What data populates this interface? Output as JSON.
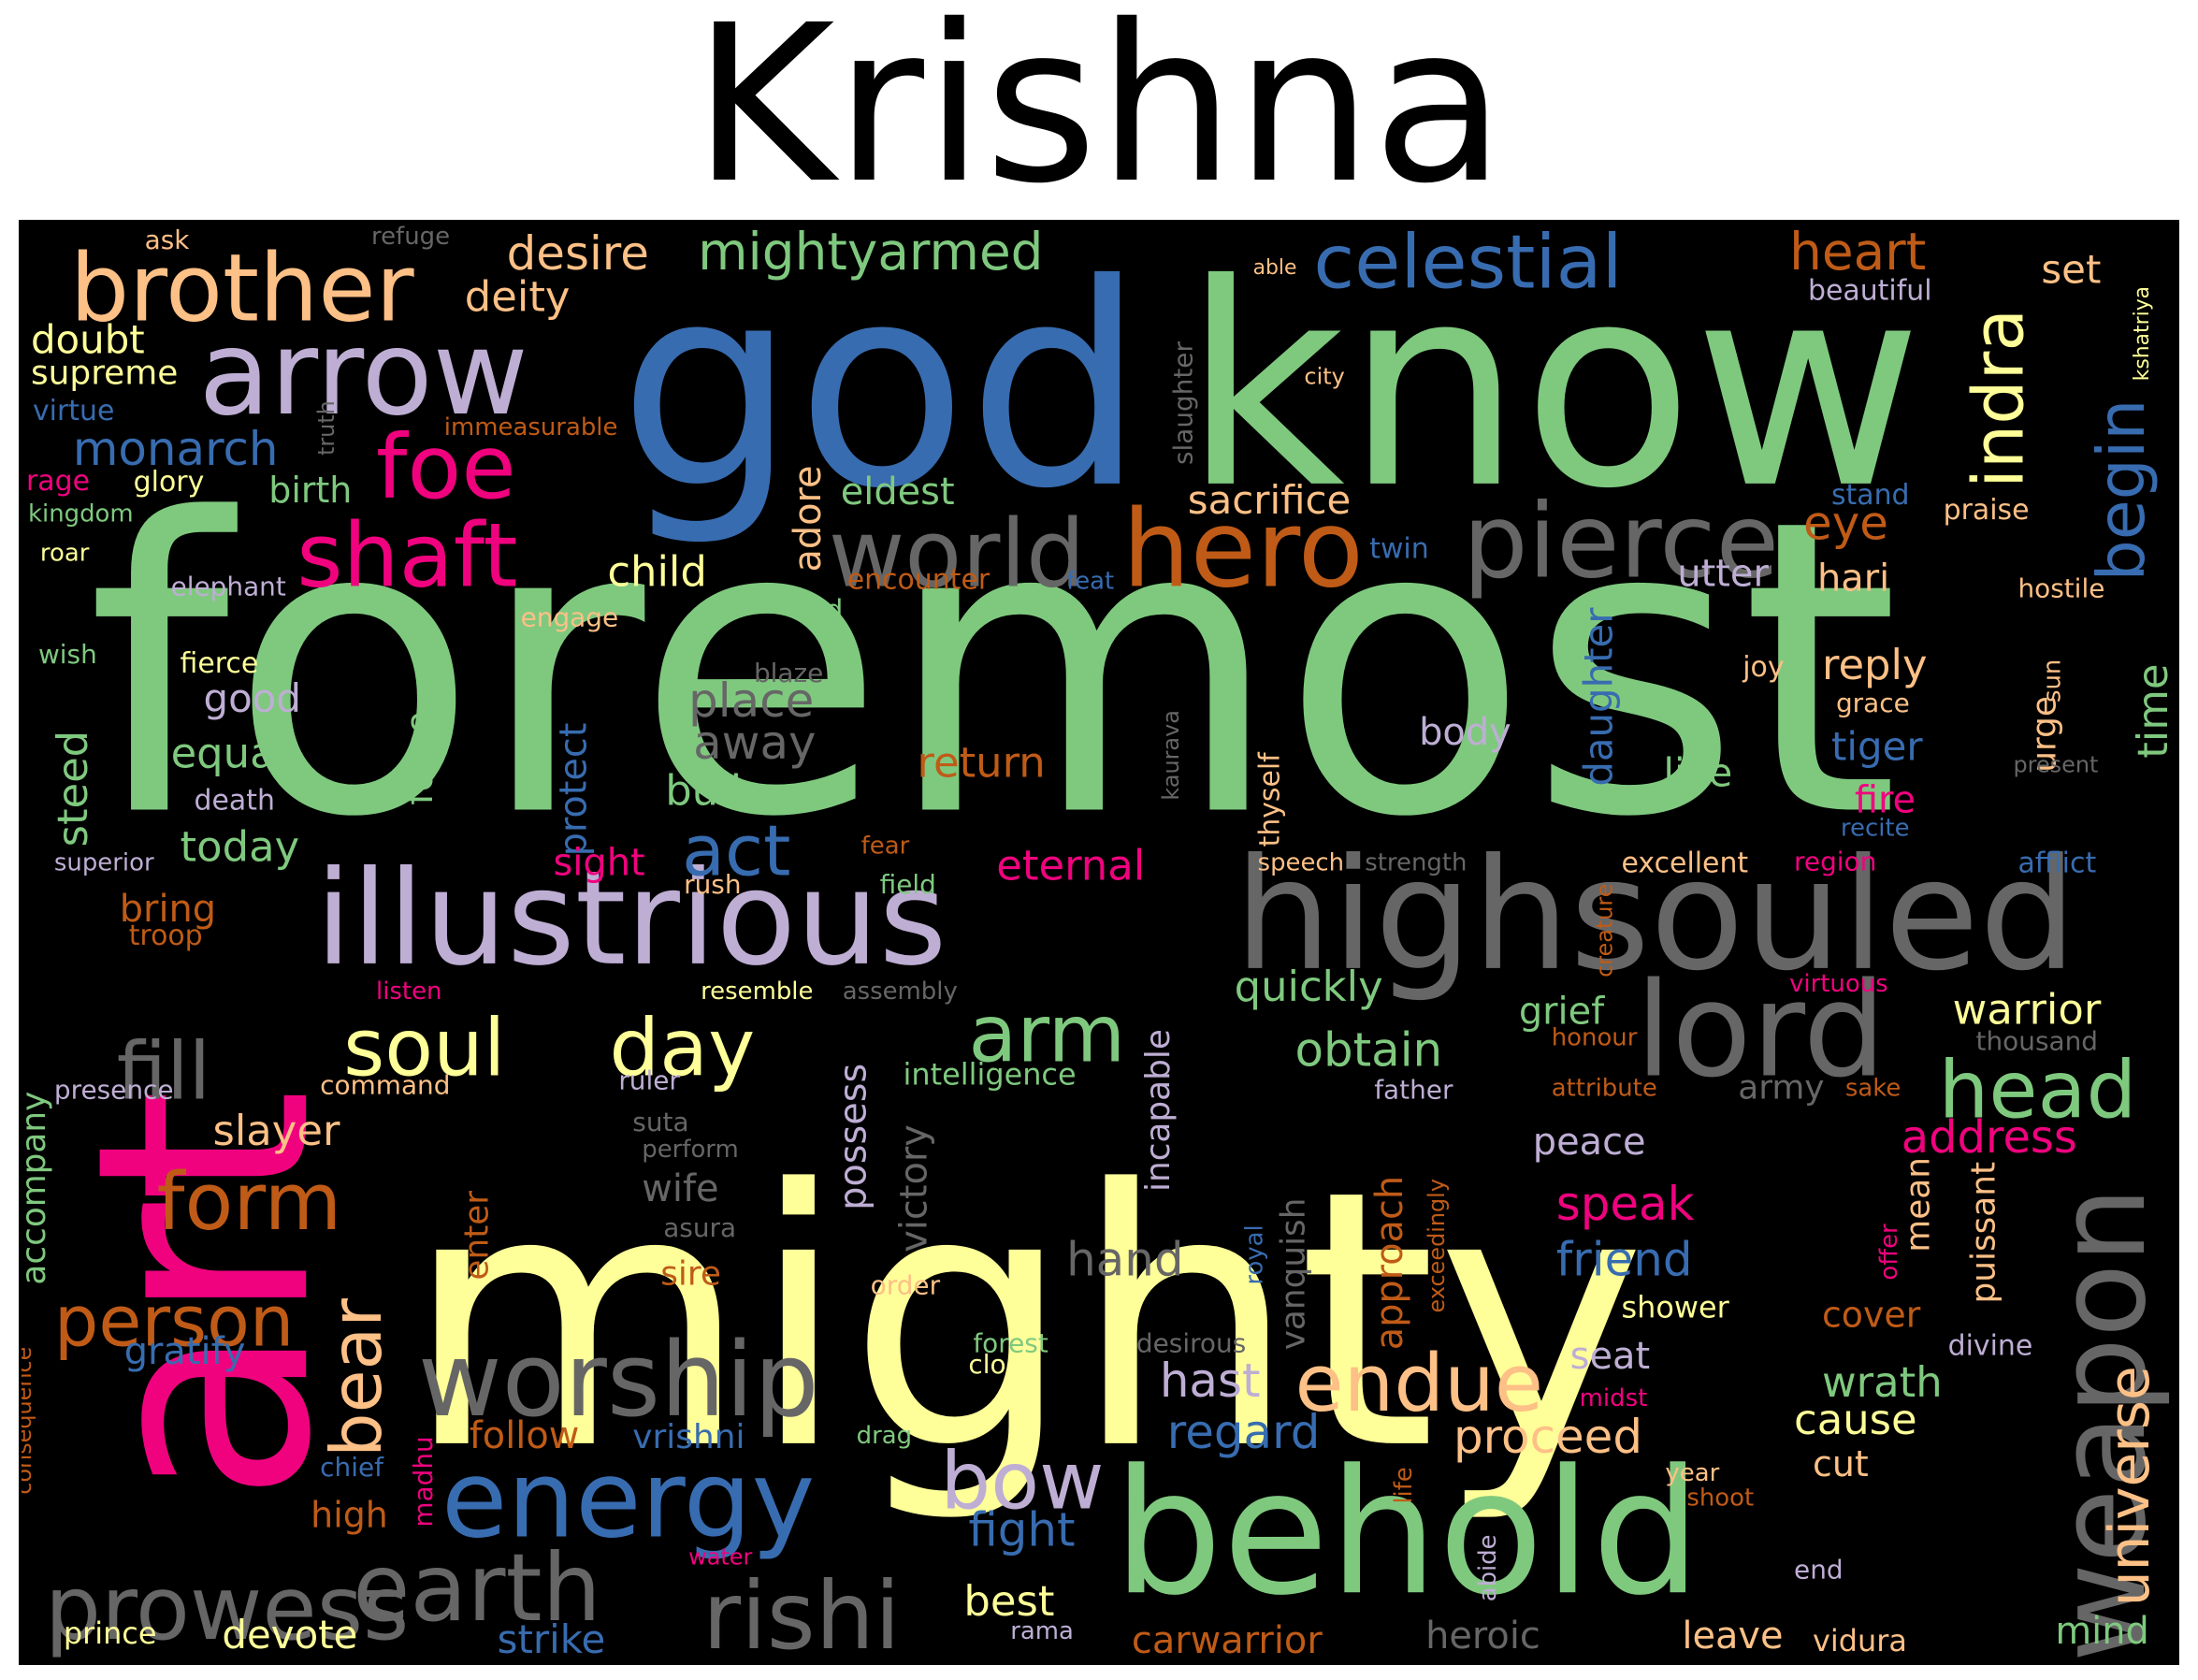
{
  "title": "Krishna",
  "colors": {
    "green": "#7fc97f",
    "purple": "#beaed4",
    "orange": "#fdc086",
    "yellow": "#ffff99",
    "blue": "#386cb0",
    "pink": "#f0027f",
    "brown": "#bf5b17",
    "gray": "#666666"
  },
  "words": [
    {
      "text": "foremost",
      "color": "green"
    },
    {
      "text": "mighty",
      "color": "yellow"
    },
    {
      "text": "art",
      "color": "pink"
    },
    {
      "text": "god",
      "color": "blue"
    },
    {
      "text": "know",
      "color": "green"
    },
    {
      "text": "highsouled",
      "color": "gray"
    },
    {
      "text": "illustrious",
      "color": "purple"
    },
    {
      "text": "behold",
      "color": "green"
    },
    {
      "text": "weapon",
      "color": "gray"
    },
    {
      "text": "lord",
      "color": "gray"
    },
    {
      "text": "arrow",
      "color": "purple"
    },
    {
      "text": "brother",
      "color": "orange"
    },
    {
      "text": "pierce",
      "color": "gray"
    },
    {
      "text": "hero",
      "color": "brown"
    },
    {
      "text": "world",
      "color": "gray"
    },
    {
      "text": "celestial",
      "color": "blue"
    },
    {
      "text": "energy",
      "color": "blue"
    },
    {
      "text": "worship",
      "color": "gray"
    },
    {
      "text": "earth",
      "color": "gray"
    },
    {
      "text": "prowess",
      "color": "gray"
    },
    {
      "text": "rishi",
      "color": "gray"
    },
    {
      "text": "shaft",
      "color": "pink"
    },
    {
      "text": "foe",
      "color": "pink"
    },
    {
      "text": "soul",
      "color": "yellow"
    },
    {
      "text": "day",
      "color": "yellow"
    },
    {
      "text": "arm",
      "color": "green"
    },
    {
      "text": "fill",
      "color": "gray"
    },
    {
      "text": "form",
      "color": "brown"
    },
    {
      "text": "head",
      "color": "green"
    },
    {
      "text": "person",
      "color": "brown"
    },
    {
      "text": "bow",
      "color": "purple"
    },
    {
      "text": "endue",
      "color": "orange"
    },
    {
      "text": "universe",
      "color": "orange"
    },
    {
      "text": "indra",
      "color": "yellow"
    },
    {
      "text": "begin",
      "color": "blue"
    },
    {
      "text": "bear",
      "color": "orange"
    },
    {
      "text": "act",
      "color": "blue"
    },
    {
      "text": "mightyarmed",
      "color": "green"
    },
    {
      "text": "heart",
      "color": "brown"
    },
    {
      "text": "desire",
      "color": "orange"
    },
    {
      "text": "deity",
      "color": "orange"
    },
    {
      "text": "monarch",
      "color": "blue"
    },
    {
      "text": "doubt",
      "color": "yellow"
    },
    {
      "text": "supreme",
      "color": "yellow"
    },
    {
      "text": "virtue",
      "color": "blue"
    },
    {
      "text": "ask",
      "color": "orange"
    },
    {
      "text": "refuge",
      "color": "gray"
    },
    {
      "text": "able",
      "color": "orange"
    },
    {
      "text": "set",
      "color": "orange"
    },
    {
      "text": "beautiful",
      "color": "purple"
    },
    {
      "text": "kshatriya",
      "color": "yellow"
    },
    {
      "text": "city",
      "color": "orange"
    },
    {
      "text": "truth",
      "color": "gray"
    },
    {
      "text": "slaughter",
      "color": "gray"
    },
    {
      "text": "immeasurable",
      "color": "brown"
    },
    {
      "text": "birth",
      "color": "green"
    },
    {
      "text": "rage",
      "color": "pink"
    },
    {
      "text": "glory",
      "color": "yellow"
    },
    {
      "text": "kingdom",
      "color": "green"
    },
    {
      "text": "roar",
      "color": "yellow"
    },
    {
      "text": "eldest",
      "color": "green"
    },
    {
      "text": "sacrifice",
      "color": "orange"
    },
    {
      "text": "adore",
      "color": "orange"
    },
    {
      "text": "stand",
      "color": "blue"
    },
    {
      "text": "praise",
      "color": "orange"
    },
    {
      "text": "eye",
      "color": "brown"
    },
    {
      "text": "elephant",
      "color": "purple"
    },
    {
      "text": "child",
      "color": "yellow"
    },
    {
      "text": "encounter",
      "color": "brown"
    },
    {
      "text": "feat",
      "color": "blue"
    },
    {
      "text": "twin",
      "color": "blue"
    },
    {
      "text": "utter",
      "color": "purple"
    },
    {
      "text": "hari",
      "color": "orange"
    },
    {
      "text": "hostile",
      "color": "orange"
    },
    {
      "text": "engage",
      "color": "orange"
    },
    {
      "text": "old",
      "color": "green"
    },
    {
      "text": "daughter",
      "color": "blue"
    },
    {
      "text": "wish",
      "color": "green"
    },
    {
      "text": "fierce",
      "color": "yellow"
    },
    {
      "text": "blaze",
      "color": "gray"
    },
    {
      "text": "joy",
      "color": "orange"
    },
    {
      "text": "reply",
      "color": "orange"
    },
    {
      "text": "sun",
      "color": "orange"
    },
    {
      "text": "good",
      "color": "purple"
    },
    {
      "text": "place",
      "color": "gray"
    },
    {
      "text": "grace",
      "color": "orange"
    },
    {
      "text": "urge",
      "color": "orange"
    },
    {
      "text": "time",
      "color": "green"
    },
    {
      "text": "body",
      "color": "purple"
    },
    {
      "text": "tiger",
      "color": "blue"
    },
    {
      "text": "away",
      "color": "gray"
    },
    {
      "text": "kaurava",
      "color": "gray"
    },
    {
      "text": "thyself",
      "color": "orange"
    },
    {
      "text": "equal",
      "color": "green"
    },
    {
      "text": "return",
      "color": "brown"
    },
    {
      "text": "steed",
      "color": "green"
    },
    {
      "text": "force",
      "color": "green"
    },
    {
      "text": "protect",
      "color": "blue"
    },
    {
      "text": "live",
      "color": "green"
    },
    {
      "text": "present",
      "color": "gray"
    },
    {
      "text": "bull",
      "color": "green"
    },
    {
      "text": "death",
      "color": "purple"
    },
    {
      "text": "fire",
      "color": "pink"
    },
    {
      "text": "recite",
      "color": "blue"
    },
    {
      "text": "today",
      "color": "green"
    },
    {
      "text": "superior",
      "color": "purple"
    },
    {
      "text": "fear",
      "color": "brown"
    },
    {
      "text": "speech",
      "color": "orange"
    },
    {
      "text": "strength",
      "color": "gray"
    },
    {
      "text": "excellent",
      "color": "orange"
    },
    {
      "text": "region",
      "color": "pink"
    },
    {
      "text": "afflict",
      "color": "blue"
    },
    {
      "text": "sight",
      "color": "pink"
    },
    {
      "text": "eternal",
      "color": "pink"
    },
    {
      "text": "rush",
      "color": "orange"
    },
    {
      "text": "field",
      "color": "green"
    },
    {
      "text": "creature",
      "color": "brown"
    },
    {
      "text": "bring",
      "color": "brown"
    },
    {
      "text": "troop",
      "color": "brown"
    },
    {
      "text": "listen",
      "color": "pink"
    },
    {
      "text": "resemble",
      "color": "yellow"
    },
    {
      "text": "assembly",
      "color": "gray"
    },
    {
      "text": "quickly",
      "color": "green"
    },
    {
      "text": "virtuous",
      "color": "pink"
    },
    {
      "text": "grief",
      "color": "green"
    },
    {
      "text": "warrior",
      "color": "yellow"
    },
    {
      "text": "honour",
      "color": "brown"
    },
    {
      "text": "thousand",
      "color": "gray"
    },
    {
      "text": "incapable",
      "color": "purple"
    },
    {
      "text": "obtain",
      "color": "green"
    },
    {
      "text": "intelligence",
      "color": "green"
    },
    {
      "text": "ruler",
      "color": "purple"
    },
    {
      "text": "command",
      "color": "orange"
    },
    {
      "text": "presence",
      "color": "purple"
    },
    {
      "text": "father",
      "color": "purple"
    },
    {
      "text": "attribute",
      "color": "brown"
    },
    {
      "text": "army",
      "color": "gray"
    },
    {
      "text": "sake",
      "color": "brown"
    },
    {
      "text": "address",
      "color": "pink"
    },
    {
      "text": "slayer",
      "color": "orange"
    },
    {
      "text": "suta",
      "color": "gray"
    },
    {
      "text": "perform",
      "color": "gray"
    },
    {
      "text": "possess",
      "color": "purple"
    },
    {
      "text": "victory",
      "color": "gray"
    },
    {
      "text": "peace",
      "color": "purple"
    },
    {
      "text": "accompany",
      "color": "green"
    },
    {
      "text": "approach",
      "color": "brown"
    },
    {
      "text": "vanquish",
      "color": "gray"
    },
    {
      "text": "exceedingly",
      "color": "brown"
    },
    {
      "text": "speak",
      "color": "pink"
    },
    {
      "text": "wife",
      "color": "gray"
    },
    {
      "text": "mean",
      "color": "orange"
    },
    {
      "text": "puissant",
      "color": "orange"
    },
    {
      "text": "asura",
      "color": "gray"
    },
    {
      "text": "enter",
      "color": "brown"
    },
    {
      "text": "royal",
      "color": "blue"
    },
    {
      "text": "hand",
      "color": "gray"
    },
    {
      "text": "offer",
      "color": "pink"
    },
    {
      "text": "sire",
      "color": "brown"
    },
    {
      "text": "friend",
      "color": "blue"
    },
    {
      "text": "order",
      "color": "orange"
    },
    {
      "text": "shower",
      "color": "yellow"
    },
    {
      "text": "cover",
      "color": "brown"
    },
    {
      "text": "consequence",
      "color": "brown"
    },
    {
      "text": "gratify",
      "color": "blue"
    },
    {
      "text": "forest",
      "color": "green"
    },
    {
      "text": "desirous",
      "color": "gray"
    },
    {
      "text": "divine",
      "color": "purple"
    },
    {
      "text": "cloud",
      "color": "yellow"
    },
    {
      "text": "seat",
      "color": "purple"
    },
    {
      "text": "hast",
      "color": "purple"
    },
    {
      "text": "wrath",
      "color": "green"
    },
    {
      "text": "midst",
      "color": "pink"
    },
    {
      "text": "cause",
      "color": "yellow"
    },
    {
      "text": "follow",
      "color": "brown"
    },
    {
      "text": "vrishni",
      "color": "blue"
    },
    {
      "text": "regard",
      "color": "blue"
    },
    {
      "text": "proceed",
      "color": "orange"
    },
    {
      "text": "drag",
      "color": "green"
    },
    {
      "text": "madhu",
      "color": "pink"
    },
    {
      "text": "chief",
      "color": "blue"
    },
    {
      "text": "life",
      "color": "brown"
    },
    {
      "text": "cut",
      "color": "orange"
    },
    {
      "text": "year",
      "color": "orange"
    },
    {
      "text": "high",
      "color": "brown"
    },
    {
      "text": "fight",
      "color": "blue"
    },
    {
      "text": "shoot",
      "color": "brown"
    },
    {
      "text": "abide",
      "color": "purple"
    },
    {
      "text": "water",
      "color": "pink"
    },
    {
      "text": "end",
      "color": "purple"
    },
    {
      "text": "best",
      "color": "yellow"
    },
    {
      "text": "prince",
      "color": "yellow"
    },
    {
      "text": "devote",
      "color": "yellow"
    },
    {
      "text": "strike",
      "color": "blue"
    },
    {
      "text": "rama",
      "color": "purple"
    },
    {
      "text": "carwarrior",
      "color": "brown"
    },
    {
      "text": "heroic",
      "color": "gray"
    },
    {
      "text": "leave",
      "color": "orange"
    },
    {
      "text": "vidura",
      "color": "orange"
    },
    {
      "text": "mind",
      "color": "green"
    }
  ]
}
